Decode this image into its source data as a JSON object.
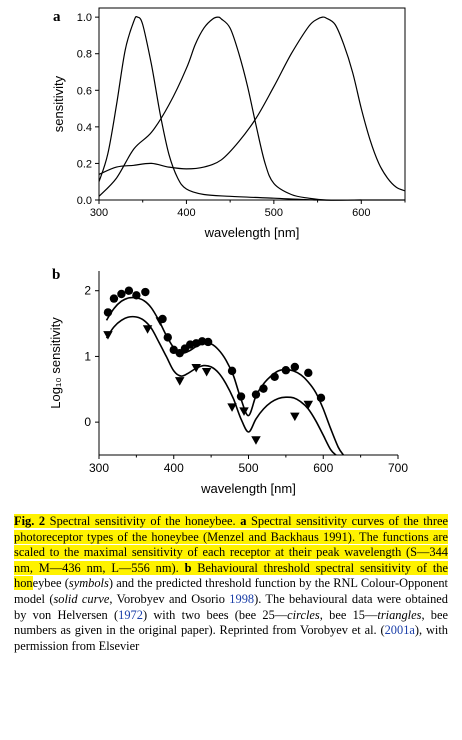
{
  "panel_a": {
    "letter": "a"
  },
  "panel_b": {
    "letter": "b"
  },
  "chart_data": [
    {
      "type": "line",
      "panel": "a",
      "xlabel": "wavelength  [nm]",
      "ylabel": "sensitivity",
      "xlim": [
        300,
        650
      ],
      "ylim": [
        0,
        1.05
      ],
      "xticks": [
        300,
        400,
        500,
        600
      ],
      "yticks": [
        0.0,
        0.2,
        0.4,
        0.6,
        0.8,
        1.0
      ],
      "ytick_labels": [
        "0.0",
        "0.2",
        "0.4",
        "0.6",
        "0.8",
        "1.0"
      ],
      "series": [
        {
          "x": [
            300,
            310,
            320,
            330,
            340,
            344,
            350,
            360,
            370,
            380,
            390,
            400,
            420,
            450,
            500,
            550,
            600,
            650
          ],
          "y": [
            0.1,
            0.25,
            0.52,
            0.82,
            0.98,
            1.0,
            0.96,
            0.74,
            0.47,
            0.25,
            0.12,
            0.06,
            0.03,
            0.02,
            0.01,
            0.0,
            0.0,
            0.0
          ]
        },
        {
          "x": [
            300,
            320,
            340,
            360,
            380,
            400,
            410,
            420,
            430,
            436,
            440,
            450,
            460,
            470,
            480,
            490,
            500,
            520,
            540,
            560,
            600
          ],
          "y": [
            0.02,
            0.12,
            0.28,
            0.37,
            0.52,
            0.72,
            0.85,
            0.94,
            0.99,
            1.0,
            0.99,
            0.94,
            0.8,
            0.62,
            0.4,
            0.2,
            0.09,
            0.03,
            0.01,
            0.0,
            0.0
          ]
        },
        {
          "x": [
            300,
            320,
            340,
            360,
            380,
            400,
            420,
            440,
            460,
            480,
            500,
            520,
            540,
            550,
            556,
            560,
            570,
            580,
            590,
            600,
            610,
            620,
            630,
            640,
            650
          ],
          "y": [
            0.14,
            0.18,
            0.19,
            0.2,
            0.18,
            0.17,
            0.18,
            0.22,
            0.32,
            0.45,
            0.62,
            0.8,
            0.95,
            0.99,
            1.0,
            0.995,
            0.96,
            0.85,
            0.7,
            0.5,
            0.33,
            0.2,
            0.12,
            0.07,
            0.05
          ]
        }
      ]
    },
    {
      "type": "scatter",
      "panel": "b",
      "xlabel": "wavelength [nm]",
      "ylabel": "Log₁₀ sensitivity",
      "xlim": [
        300,
        700
      ],
      "ylim": [
        -0.5,
        2.3
      ],
      "xticks": [
        300,
        400,
        500,
        600,
        700
      ],
      "yticks": [
        0,
        1,
        2
      ],
      "series": [
        {
          "marker": "circle",
          "x": [
            312,
            320,
            330,
            340,
            350,
            362,
            385,
            392,
            400,
            408,
            415,
            422,
            430,
            438,
            446,
            478,
            490,
            510,
            520,
            535,
            550,
            562,
            580,
            597
          ],
          "y": [
            1.67,
            1.88,
            1.95,
            2.0,
            1.93,
            1.98,
            1.57,
            1.29,
            1.1,
            1.05,
            1.12,
            1.18,
            1.2,
            1.23,
            1.22,
            0.78,
            0.39,
            0.42,
            0.51,
            0.69,
            0.79,
            0.84,
            0.75,
            0.37
          ]
        },
        {
          "marker": "triangle",
          "x": [
            312,
            365,
            382,
            408,
            430,
            444,
            478,
            494,
            510,
            562,
            580
          ],
          "y": [
            1.32,
            1.41,
            1.53,
            0.62,
            0.82,
            0.76,
            0.22,
            0.16,
            -0.28,
            0.08,
            0.26
          ]
        }
      ],
      "fits": [
        {
          "style": "solid",
          "x": [
            310,
            320,
            330,
            340,
            350,
            360,
            370,
            380,
            390,
            400,
            410,
            420,
            430,
            440,
            450,
            460,
            470,
            480,
            490,
            500,
            510,
            520,
            530,
            540,
            550,
            560,
            570,
            580,
            590,
            600,
            610,
            620,
            627
          ],
          "y": [
            1.55,
            1.73,
            1.84,
            1.89,
            1.89,
            1.85,
            1.74,
            1.55,
            1.32,
            1.13,
            1.05,
            1.08,
            1.15,
            1.2,
            1.19,
            1.1,
            0.94,
            0.7,
            0.35,
            0.1,
            0.4,
            0.58,
            0.7,
            0.78,
            0.8,
            0.78,
            0.72,
            0.61,
            0.45,
            0.2,
            -0.1,
            -0.38,
            -0.5
          ]
        },
        {
          "style": "solid",
          "x": [
            310,
            320,
            330,
            340,
            350,
            360,
            370,
            380,
            390,
            400,
            410,
            420,
            430,
            440,
            450,
            460,
            470,
            480,
            490,
            500,
            510,
            520,
            530,
            540,
            550,
            560,
            570,
            580,
            590,
            600,
            610,
            617
          ],
          "y": [
            1.28,
            1.45,
            1.55,
            1.6,
            1.6,
            1.55,
            1.43,
            1.22,
            1.0,
            0.78,
            0.7,
            0.75,
            0.82,
            0.86,
            0.84,
            0.75,
            0.58,
            0.35,
            0.05,
            -0.15,
            0.05,
            0.2,
            0.3,
            0.36,
            0.38,
            0.37,
            0.31,
            0.2,
            0.02,
            -0.2,
            -0.42,
            -0.5
          ]
        }
      ]
    }
  ],
  "caption": {
    "fig": "Fig. 2",
    "p1": " Spectral sensitivity of the honeybee. ",
    "a": "a",
    "p2": " Spectral sensitivity curves of the three photoreceptor types of the honeybee (Menzel and Backhaus 1991). The functions are scaled to the maximal sensitivity of each receptor at their peak wavelength (S—344 nm, M—436 nm, L—556 nm). ",
    "b": "b",
    "p3": " Behavioural threshold spectral sensitivity of the hon",
    "p4": "eybee (",
    "symbols": "symbols",
    "p5": ") and the predicted threshold function by the RNL Colour-Opponent model (",
    "solid_curve": "solid curve",
    "p6": ", Vorobyev and Osorio ",
    "ref1": "1998",
    "p7": "). The behavioural data were obtained by von Helversen (",
    "ref2": "1972",
    "p8": ") with two bees (bee 25—",
    "circles": "circles",
    "p9": ", bee 15—",
    "triangles": "triangles",
    "p10": ", bee numbers as given in the original paper). Reprinted from Vorobyev et al. (",
    "ref3": "2001a",
    "p11": "), with permission from Elsevier"
  }
}
